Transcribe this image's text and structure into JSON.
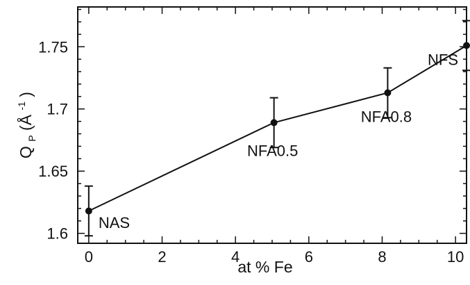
{
  "chart_data": {
    "type": "line",
    "title": "",
    "xlabel": "at % Fe",
    "ylabel": {
      "main": "Q",
      "sub": "P",
      "open": " (Å",
      "sup": "-1",
      "close": ")"
    },
    "xlim": [
      -0.3,
      10.3
    ],
    "ylim": [
      1.592,
      1.782
    ],
    "grid": false,
    "x_ticks": [
      0,
      2,
      4,
      6,
      8,
      10
    ],
    "x_tick_labels": [
      "0",
      "2",
      "4",
      "6",
      "8",
      "10"
    ],
    "y_ticks": [
      1.6,
      1.65,
      1.7,
      1.75
    ],
    "y_tick_labels": [
      "1.6",
      "1.65",
      "1.7",
      "1.75"
    ],
    "series": [
      {
        "points": [
          {
            "x": 0.0,
            "y": 1.618,
            "err": 0.02,
            "label": "NAS"
          },
          {
            "x": 5.05,
            "y": 1.689,
            "err": 0.02,
            "label": "NFA0.5"
          },
          {
            "x": 8.15,
            "y": 1.713,
            "err": 0.02,
            "label": "NFA0.8"
          },
          {
            "x": 10.3,
            "y": 1.751,
            "err": 0.02,
            "label": "NFS"
          }
        ]
      }
    ]
  }
}
